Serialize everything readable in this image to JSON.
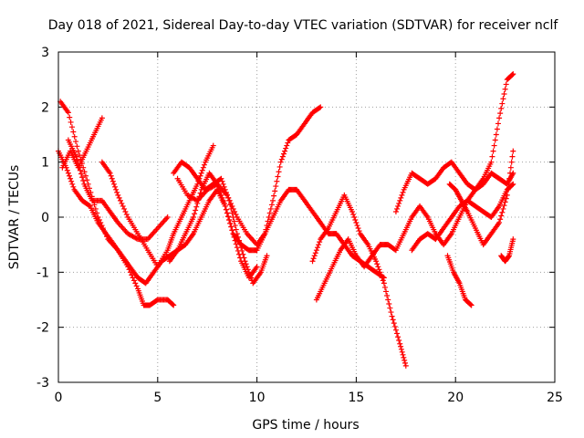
{
  "chart_data": {
    "type": "scatter",
    "title": "Day 018 of 2021, Sidereal Day-to-day VTEC variation (SDTVAR) for receiver nclf",
    "xlabel": "GPS time / hours",
    "ylabel": "SDTVAR / TECUs",
    "xlim": [
      0,
      25
    ],
    "ylim": [
      -3,
      3
    ],
    "xticks": [
      "0",
      "5",
      "10",
      "15",
      "20",
      "25"
    ],
    "yticks": [
      "3",
      "2",
      "1",
      "0",
      "-1",
      "-2",
      "-3"
    ],
    "grid": true,
    "marker": "+",
    "color": "#ff0000",
    "series": [
      {
        "name": "trace-1",
        "x": [
          0.1,
          0.5,
          1.0,
          1.5,
          2.0,
          2.5,
          3.0,
          3.5,
          4.0,
          4.3,
          4.6,
          5.0,
          5.5,
          5.8
        ],
        "y": [
          2.1,
          1.9,
          1.2,
          0.6,
          0.0,
          -0.4,
          -0.6,
          -0.9,
          -1.3,
          -1.6,
          -1.6,
          -1.5,
          -1.5,
          -1.6
        ]
      },
      {
        "name": "trace-2",
        "x": [
          0.0,
          0.4,
          0.8,
          1.2,
          1.6,
          2.0,
          2.4,
          2.8,
          3.2,
          3.6,
          4.0,
          4.4,
          4.8,
          5.2,
          5.6,
          6.0,
          6.4,
          6.8,
          7.2,
          7.6,
          8.0,
          8.4,
          8.8,
          9.2,
          9.6,
          10.0
        ],
        "y": [
          1.2,
          0.9,
          0.5,
          0.3,
          0.2,
          -0.1,
          -0.3,
          -0.5,
          -0.7,
          -0.9,
          -1.1,
          -1.2,
          -1.0,
          -0.8,
          -0.7,
          -0.6,
          -0.5,
          -0.3,
          0.0,
          0.3,
          0.5,
          0.2,
          -0.3,
          -0.8,
          -1.1,
          -0.9
        ]
      },
      {
        "name": "trace-3",
        "x": [
          0.2,
          0.6,
          1.0,
          1.4,
          1.8,
          2.2
        ],
        "y": [
          0.9,
          1.2,
          0.9,
          1.2,
          1.5,
          1.8
        ]
      },
      {
        "name": "trace-4",
        "x": [
          0.5,
          0.9,
          1.3,
          1.7,
          2.2,
          2.6,
          3.0,
          3.5,
          4.0,
          4.5,
          5.0,
          5.5
        ],
        "y": [
          1.4,
          1.1,
          0.6,
          0.3,
          0.3,
          0.1,
          -0.1,
          -0.3,
          -0.4,
          -0.4,
          -0.2,
          0.0
        ]
      },
      {
        "name": "trace-5",
        "x": [
          2.2,
          2.6,
          3.0,
          3.5,
          4.0,
          4.5,
          5.0,
          5.5,
          5.8,
          6.2,
          6.6,
          7.0,
          7.4,
          7.8
        ],
        "y": [
          1.0,
          0.8,
          0.4,
          0.0,
          -0.3,
          -0.6,
          -0.9,
          -0.6,
          -0.3,
          0.0,
          0.3,
          0.6,
          1.0,
          1.3
        ]
      },
      {
        "name": "trace-6",
        "x": [
          5.6,
          6.0,
          6.4,
          6.8,
          7.2,
          7.6,
          8.0,
          8.4,
          8.8,
          9.2,
          9.6,
          10.0,
          10.4,
          10.8,
          11.2,
          11.6,
          12.0,
          12.4,
          12.8,
          13.2
        ],
        "y": [
          -0.8,
          -0.6,
          -0.3,
          0.0,
          0.5,
          0.8,
          0.6,
          0.2,
          -0.3,
          -0.5,
          -0.6,
          -0.6,
          -0.3,
          0.3,
          1.0,
          1.4,
          1.5,
          1.7,
          1.9,
          2.0
        ]
      },
      {
        "name": "trace-7",
        "x": [
          5.8,
          6.2,
          6.6,
          7.0,
          7.4,
          7.8,
          8.2,
          8.6,
          9.0,
          9.4,
          9.8,
          10.2,
          10.5
        ],
        "y": [
          0.8,
          1.0,
          0.9,
          0.7,
          0.5,
          0.6,
          0.7,
          0.3,
          -0.3,
          -0.8,
          -1.2,
          -1.0,
          -0.7
        ]
      },
      {
        "name": "trace-8",
        "x": [
          6.0,
          6.5,
          7.0,
          7.5,
          8.0,
          8.5,
          9.0,
          9.5,
          10.0,
          10.4,
          10.8,
          11.2,
          11.6,
          12.0,
          12.4,
          12.8,
          13.2,
          13.6,
          14.0,
          14.4,
          14.8,
          15.2,
          15.6,
          16.0,
          16.4
        ],
        "y": [
          0.7,
          0.4,
          0.3,
          0.5,
          0.6,
          0.4,
          0.0,
          -0.3,
          -0.5,
          -0.3,
          0.0,
          0.3,
          0.5,
          0.5,
          0.3,
          0.1,
          -0.1,
          -0.3,
          -0.3,
          -0.5,
          -0.7,
          -0.8,
          -0.9,
          -1.0,
          -1.1
        ]
      },
      {
        "name": "trace-9",
        "x": [
          12.8,
          13.2,
          13.6,
          14.0,
          14.4,
          14.8,
          15.2,
          15.6,
          16.0,
          16.4,
          16.8,
          17.2,
          17.5
        ],
        "y": [
          -0.8,
          -0.4,
          -0.2,
          0.1,
          0.4,
          0.1,
          -0.3,
          -0.5,
          -0.8,
          -1.2,
          -1.8,
          -2.3,
          -2.7
        ]
      },
      {
        "name": "trace-10",
        "x": [
          13.0,
          13.4,
          13.8,
          14.2,
          14.6,
          15.0,
          15.4,
          15.8,
          16.2,
          16.6,
          17.0,
          17.4,
          17.8,
          18.2,
          18.6,
          19.0,
          19.4,
          19.8,
          20.2,
          20.6,
          21.0,
          21.4,
          21.8,
          22.2,
          22.6,
          22.9
        ],
        "y": [
          -1.5,
          -1.2,
          -0.9,
          -0.6,
          -0.4,
          -0.7,
          -0.9,
          -0.7,
          -0.5,
          -0.5,
          -0.6,
          -0.3,
          0.0,
          0.2,
          0.0,
          -0.3,
          -0.5,
          -0.3,
          0.0,
          0.3,
          0.5,
          0.7,
          1.0,
          1.8,
          2.5,
          2.6
        ]
      },
      {
        "name": "trace-11",
        "x": [
          17.0,
          17.4,
          17.8,
          18.2,
          18.6,
          19.0,
          19.4,
          19.8,
          20.2,
          20.6,
          21.0,
          21.4,
          21.8,
          22.2,
          22.6,
          22.9
        ],
        "y": [
          0.1,
          0.5,
          0.8,
          0.7,
          0.6,
          0.7,
          0.9,
          1.0,
          0.8,
          0.6,
          0.5,
          0.6,
          0.8,
          0.7,
          0.6,
          0.8
        ]
      },
      {
        "name": "trace-12",
        "x": [
          17.8,
          18.2,
          18.6,
          19.0,
          19.4,
          19.8,
          20.2,
          20.6,
          21.0,
          21.4,
          21.8,
          22.2,
          22.6,
          22.9
        ],
        "y": [
          -0.6,
          -0.4,
          -0.3,
          -0.4,
          -0.2,
          0.0,
          0.2,
          0.3,
          0.2,
          0.1,
          0.0,
          0.2,
          0.5,
          0.6
        ]
      },
      {
        "name": "trace-13",
        "x": [
          19.6,
          19.9,
          20.2,
          20.5,
          20.8
        ],
        "y": [
          -0.7,
          -1.0,
          -1.2,
          -1.5,
          -1.6
        ]
      },
      {
        "name": "trace-14",
        "x": [
          19.7,
          20.0,
          20.3,
          20.6,
          21.0,
          21.4,
          21.8,
          22.2,
          22.6,
          22.9
        ],
        "y": [
          0.6,
          0.5,
          0.3,
          0.1,
          -0.2,
          -0.5,
          -0.3,
          -0.1,
          0.4,
          1.2
        ]
      },
      {
        "name": "trace-15",
        "x": [
          22.3,
          22.5,
          22.7,
          22.9
        ],
        "y": [
          -0.7,
          -0.8,
          -0.7,
          -0.4
        ]
      }
    ]
  }
}
